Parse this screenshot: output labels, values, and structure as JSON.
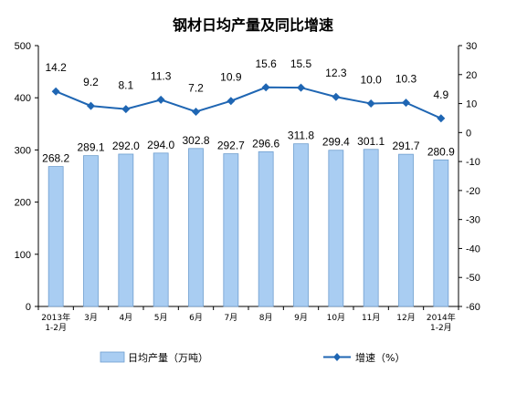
{
  "chart_data": {
    "type": "bar+line",
    "title": "钢材日均产量及同比增速",
    "categories": [
      [
        "2013年",
        "1-2月"
      ],
      [
        "3月"
      ],
      [
        "4月"
      ],
      [
        "5月"
      ],
      [
        "6月"
      ],
      [
        "7月"
      ],
      [
        "8月"
      ],
      [
        "9月"
      ],
      [
        "10月"
      ],
      [
        "11月"
      ],
      [
        "12月"
      ],
      [
        "2014年",
        "1-2月"
      ]
    ],
    "series": [
      {
        "name": "日均产量（万吨）",
        "type": "bar",
        "axis": "left",
        "values": [
          268.2,
          289.1,
          292.0,
          294.0,
          302.8,
          292.7,
          296.6,
          311.8,
          299.4,
          301.1,
          291.7,
          280.9
        ],
        "labels": [
          "268.2",
          "289.1",
          "292.0",
          "294.0",
          "302.8",
          "292.7",
          "296.6",
          "311.8",
          "299.4",
          "301.1",
          "291.7",
          "280.9"
        ],
        "color": "#a9cdf2"
      },
      {
        "name": "增速（%）",
        "type": "line",
        "axis": "right",
        "values": [
          14.2,
          9.2,
          8.1,
          11.3,
          7.2,
          10.9,
          15.6,
          15.5,
          12.3,
          10.0,
          10.3,
          4.9
        ],
        "labels": [
          "14.2",
          "9.2",
          "8.1",
          "11.3",
          "7.2",
          "10.9",
          "15.6",
          "15.5",
          "12.3",
          "10.0",
          "10.3",
          "4.9"
        ],
        "color": "#1f66b3"
      }
    ],
    "y_left": {
      "lim": [
        0,
        500
      ],
      "ticks": [
        "0",
        "100",
        "200",
        "300",
        "400",
        "500"
      ]
    },
    "y_right": {
      "lim": [
        -60,
        30
      ],
      "ticks": [
        "-60",
        "-50",
        "-40",
        "-30",
        "-20",
        "-10",
        "0",
        "10",
        "20",
        "30"
      ]
    },
    "grid": false,
    "legend_position": "bottom"
  }
}
